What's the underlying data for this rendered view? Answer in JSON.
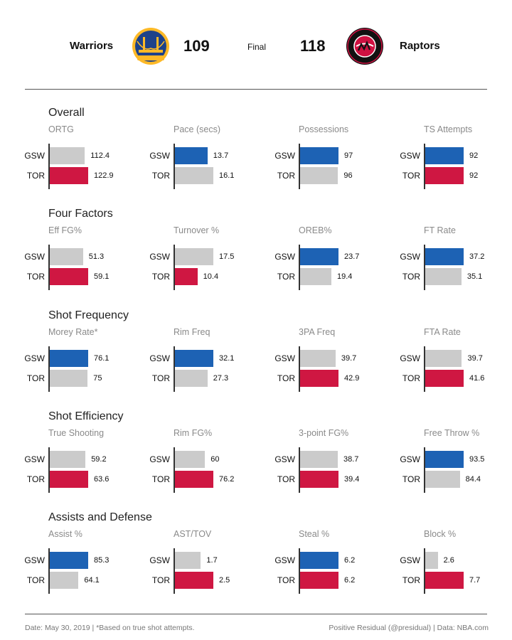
{
  "header": {
    "away_team": "Warriors",
    "away_score": "109",
    "status": "Final",
    "home_score": "118",
    "home_team": "Raptors",
    "away_logo_text": "GOLDEN STATE WARRIORS",
    "home_logo_text": "TORONTO RAPTORS"
  },
  "colors": {
    "gsw": "#1d62b4",
    "tor": "#cf1742",
    "neutral": "#cbcbcb"
  },
  "row_labels": [
    "GSW",
    "TOR"
  ],
  "chart_data": {
    "type": "bar",
    "sections": [
      {
        "title": "Overall",
        "metrics": [
          {
            "label": "ORTG",
            "gsw": 112.4,
            "tor": 122.9,
            "gsw_text": "112.4",
            "tor_text": "122.9",
            "leader": "tor"
          },
          {
            "label": "Pace (secs)",
            "gsw": 13.7,
            "tor": 16.1,
            "gsw_text": "13.7",
            "tor_text": "16.1",
            "leader": "gsw"
          },
          {
            "label": "Possessions",
            "gsw": 97,
            "tor": 96,
            "gsw_text": "97",
            "tor_text": "96",
            "leader": "gsw"
          },
          {
            "label": "TS Attempts",
            "gsw": 92,
            "tor": 92,
            "gsw_text": "92",
            "tor_text": "92",
            "leader": "both"
          }
        ]
      },
      {
        "title": "Four Factors",
        "metrics": [
          {
            "label": "Eff FG%",
            "gsw": 51.3,
            "tor": 59.1,
            "gsw_text": "51.3",
            "tor_text": "59.1",
            "leader": "tor"
          },
          {
            "label": "Turnover %",
            "gsw": 17.5,
            "tor": 10.4,
            "gsw_text": "17.5",
            "tor_text": "10.4",
            "leader": "tor"
          },
          {
            "label": "OREB%",
            "gsw": 23.7,
            "tor": 19.4,
            "gsw_text": "23.7",
            "tor_text": "19.4",
            "leader": "gsw"
          },
          {
            "label": "FT Rate",
            "gsw": 37.2,
            "tor": 35.1,
            "gsw_text": "37.2",
            "tor_text": "35.1",
            "leader": "gsw"
          }
        ]
      },
      {
        "title": "Shot Frequency",
        "metrics": [
          {
            "label": "Morey Rate*",
            "gsw": 76.1,
            "tor": 75,
            "gsw_text": "76.1",
            "tor_text": "75",
            "leader": "gsw"
          },
          {
            "label": "Rim Freq",
            "gsw": 32.1,
            "tor": 27.3,
            "gsw_text": "32.1",
            "tor_text": "27.3",
            "leader": "gsw"
          },
          {
            "label": "3PA Freq",
            "gsw": 39.7,
            "tor": 42.9,
            "gsw_text": "39.7",
            "tor_text": "42.9",
            "leader": "tor"
          },
          {
            "label": "FTA Rate",
            "gsw": 39.7,
            "tor": 41.6,
            "gsw_text": "39.7",
            "tor_text": "41.6",
            "leader": "tor"
          }
        ]
      },
      {
        "title": "Shot Efficiency",
        "metrics": [
          {
            "label": "True Shooting",
            "gsw": 59.2,
            "tor": 63.6,
            "gsw_text": "59.2",
            "tor_text": "63.6",
            "leader": "tor"
          },
          {
            "label": "Rim FG%",
            "gsw": 60,
            "tor": 76.2,
            "gsw_text": "60",
            "tor_text": "76.2",
            "leader": "tor"
          },
          {
            "label": "3-point FG%",
            "gsw": 38.7,
            "tor": 39.4,
            "gsw_text": "38.7",
            "tor_text": "39.4",
            "leader": "tor"
          },
          {
            "label": "Free Throw %",
            "gsw": 93.5,
            "tor": 84.4,
            "gsw_text": "93.5",
            "tor_text": "84.4",
            "leader": "gsw"
          }
        ]
      },
      {
        "title": "Assists and Defense",
        "metrics": [
          {
            "label": "Assist %",
            "gsw": 85.3,
            "tor": 64.1,
            "gsw_text": "85.3",
            "tor_text": "64.1",
            "leader": "gsw"
          },
          {
            "label": "AST/TOV",
            "gsw": 1.7,
            "tor": 2.5,
            "gsw_text": "1.7",
            "tor_text": "2.5",
            "leader": "tor"
          },
          {
            "label": "Steal %",
            "gsw": 6.2,
            "tor": 6.2,
            "gsw_text": "6.2",
            "tor_text": "6.2",
            "leader": "both"
          },
          {
            "label": "Block %",
            "gsw": 2.6,
            "tor": 7.7,
            "gsw_text": "2.6",
            "tor_text": "7.7",
            "leader": "tor"
          }
        ]
      }
    ]
  },
  "footer": {
    "left": "Date:  May 30, 2019  | *Based on true shot attempts.",
    "right": "Positive Residual (@presidual)  |  Data: NBA.com"
  }
}
